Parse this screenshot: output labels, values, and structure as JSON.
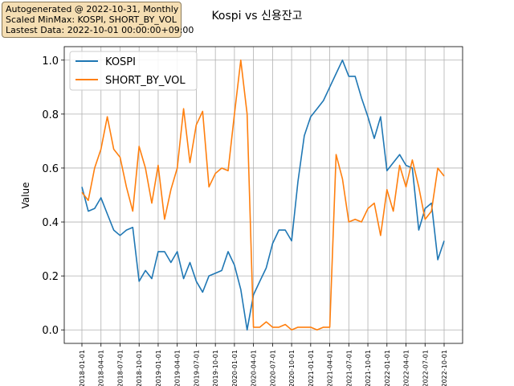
{
  "info_box": {
    "line1": "Autogenerated @ 2022-10-31, Monthly",
    "line2": "Scaled MinMax: KOSPI, SHORT_BY_VOL",
    "line3": "Lastest Data: 2022-10-01 00:00:00+09:00"
  },
  "colors": {
    "KOSPI": "#1f77b4",
    "SHORT_BY_VOL": "#ff7f0e",
    "grid": "#b0b0b0"
  },
  "chart_data": {
    "type": "line",
    "title": "Kospi vs 신용잔고",
    "xlabel": "",
    "ylabel": "Value",
    "ylim": [
      -0.05,
      1.05
    ],
    "yticks": [
      "0.0",
      "0.2",
      "0.4",
      "0.6",
      "0.8",
      "1.0"
    ],
    "grid": true,
    "legend_position": "upper-left",
    "x_tick_labels": [
      "2018-01-01",
      "2018-04-01",
      "2018-07-01",
      "2018-10-01",
      "2019-01-01",
      "2019-04-01",
      "2019-07-01",
      "2019-10-01",
      "2020-01-01",
      "2020-04-01",
      "2020-07-01",
      "2020-10-01",
      "2021-01-01",
      "2021-04-01",
      "2021-07-01",
      "2021-10-01",
      "2022-01-01",
      "2022-04-01",
      "2022-07-01",
      "2022-10-01"
    ],
    "x": [
      "2018-01",
      "2018-02",
      "2018-03",
      "2018-04",
      "2018-05",
      "2018-06",
      "2018-07",
      "2018-08",
      "2018-09",
      "2018-10",
      "2018-11",
      "2018-12",
      "2019-01",
      "2019-02",
      "2019-03",
      "2019-04",
      "2019-05",
      "2019-06",
      "2019-07",
      "2019-08",
      "2019-09",
      "2019-10",
      "2019-11",
      "2019-12",
      "2020-01",
      "2020-02",
      "2020-03",
      "2020-04",
      "2020-05",
      "2020-06",
      "2020-07",
      "2020-08",
      "2020-09",
      "2020-10",
      "2020-11",
      "2020-12",
      "2021-01",
      "2021-02",
      "2021-03",
      "2021-04",
      "2021-05",
      "2021-06",
      "2021-07",
      "2021-08",
      "2021-09",
      "2021-10",
      "2021-11",
      "2021-12",
      "2022-01",
      "2022-02",
      "2022-03",
      "2022-04",
      "2022-05",
      "2022-06",
      "2022-07",
      "2022-08",
      "2022-09",
      "2022-10"
    ],
    "series": [
      {
        "name": "KOSPI",
        "values": [
          0.53,
          0.44,
          0.45,
          0.49,
          0.43,
          0.37,
          0.35,
          0.37,
          0.38,
          0.18,
          0.22,
          0.19,
          0.29,
          0.29,
          0.25,
          0.29,
          0.19,
          0.25,
          0.18,
          0.14,
          0.2,
          0.21,
          0.22,
          0.29,
          0.24,
          0.15,
          0.0,
          0.13,
          0.18,
          0.23,
          0.32,
          0.37,
          0.37,
          0.33,
          0.55,
          0.72,
          0.79,
          0.82,
          0.85,
          0.9,
          0.95,
          1.0,
          0.94,
          0.94,
          0.86,
          0.79,
          0.71,
          0.79,
          0.59,
          0.62,
          0.65,
          0.61,
          0.6,
          0.37,
          0.45,
          0.47,
          0.26,
          0.33
        ]
      },
      {
        "name": "SHORT_BY_VOL",
        "values": [
          0.51,
          0.48,
          0.6,
          0.67,
          0.79,
          0.67,
          0.64,
          0.53,
          0.44,
          0.68,
          0.6,
          0.47,
          0.61,
          0.41,
          0.52,
          0.6,
          0.82,
          0.62,
          0.76,
          0.81,
          0.53,
          0.58,
          0.6,
          0.59,
          0.8,
          1.0,
          0.8,
          0.01,
          0.01,
          0.03,
          0.01,
          0.01,
          0.02,
          0.0,
          0.01,
          0.01,
          0.01,
          0.0,
          0.01,
          0.01,
          0.65,
          0.56,
          0.4,
          0.41,
          0.4,
          0.45,
          0.47,
          0.35,
          0.52,
          0.44,
          0.61,
          0.53,
          0.63,
          0.53,
          0.41,
          0.44,
          0.6,
          0.57
        ]
      }
    ]
  }
}
